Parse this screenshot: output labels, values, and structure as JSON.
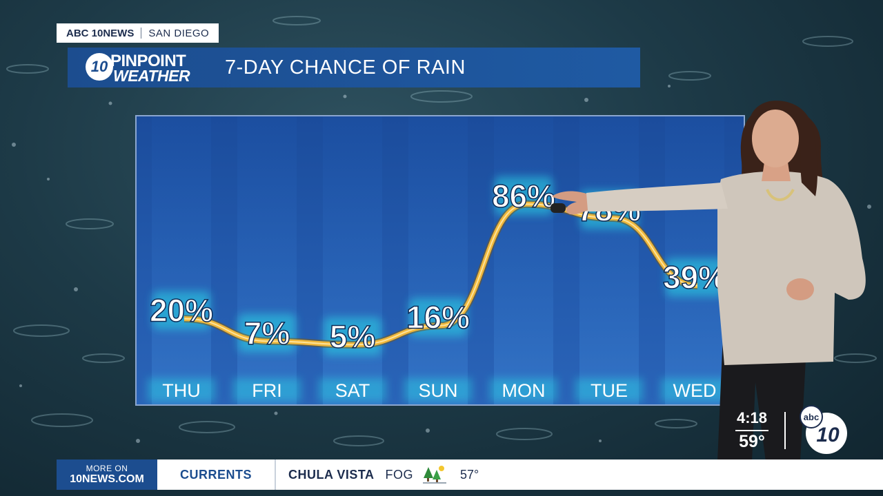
{
  "station": {
    "name": "ABC 10NEWS",
    "city": "SAN DIEGO"
  },
  "logo": {
    "circle": "10",
    "line1": "PINPOINT",
    "line2": "WEATHER"
  },
  "title": "7-DAY CHANCE OF RAIN",
  "chart_data": {
    "type": "bar",
    "categories": [
      "THU",
      "FRI",
      "SAT",
      "SUN",
      "MON",
      "TUE",
      "WED"
    ],
    "values": [
      20,
      7,
      5,
      16,
      86,
      78,
      39
    ],
    "labels": [
      "20%",
      "7%",
      "5%",
      "16%",
      "86%",
      "78%",
      "39%"
    ],
    "ylim": [
      0,
      100
    ],
    "title": "7-DAY CHANCE OF RAIN"
  },
  "clock": {
    "time": "4:18",
    "temp": "59°"
  },
  "ticker": {
    "more_on": "MORE ON",
    "site": "10NEWS.COM",
    "section": "CURRENTS",
    "city": "CHULA VISTA",
    "condition": "FOG",
    "condition_icon": "fog-trees-icon",
    "temp": "57°"
  },
  "colors": {
    "brand_blue": "#1c4d8f",
    "label_glow": "#29d4e6",
    "curve": "#f0b73a"
  }
}
